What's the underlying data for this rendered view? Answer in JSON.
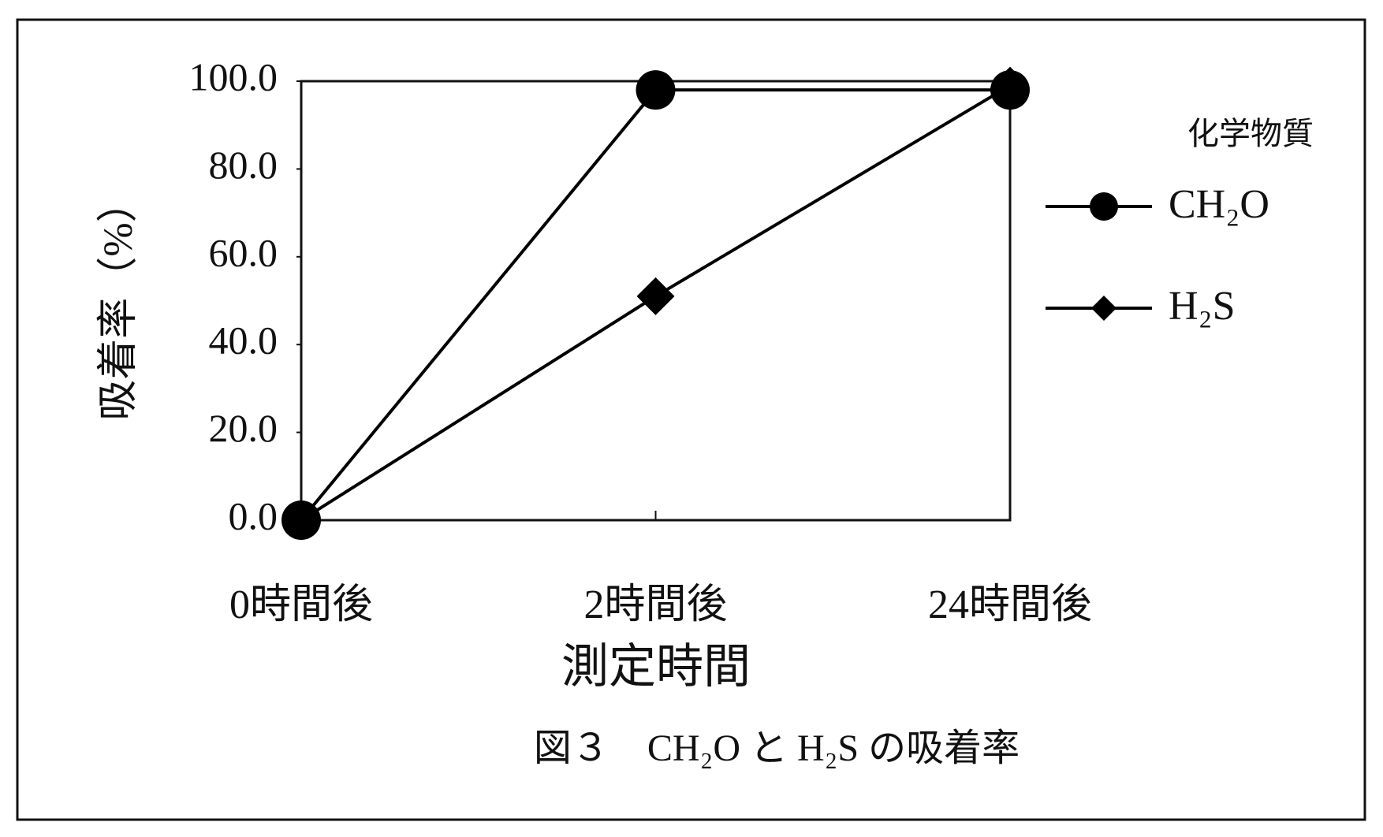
{
  "chart_data": {
    "type": "line",
    "title": "図３　CH₂O と H₂S の吸着率",
    "xlabel": "測定時間",
    "ylabel": "吸着率（%）",
    "legend_title": "化学物質",
    "categories": [
      "0時間後",
      "2時間後",
      "24時間後"
    ],
    "series": [
      {
        "name": "CH₂O",
        "color": "#000000",
        "marker": "circle",
        "values": [
          0,
          98,
          98
        ]
      },
      {
        "name": "H₂S",
        "color": "#000000",
        "marker": "diamond",
        "values": [
          0,
          51,
          99
        ]
      }
    ],
    "ylim": [
      0,
      100
    ],
    "yticks": [
      {
        "value": 0,
        "label": "0.0"
      },
      {
        "value": 20,
        "label": "20.0"
      },
      {
        "value": 40,
        "label": "40.0"
      },
      {
        "value": 60,
        "label": "60.0"
      },
      {
        "value": 80,
        "label": "80.0"
      },
      {
        "value": 100,
        "label": "100.0"
      }
    ],
    "grid": false,
    "legend": "right"
  }
}
